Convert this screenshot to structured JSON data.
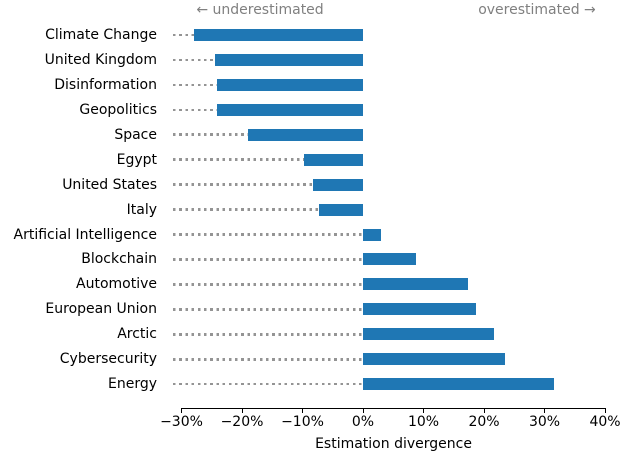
{
  "annotations": {
    "underestimated": "← underestimated",
    "overestimated": "overestimated →"
  },
  "colors": {
    "bar": "#1f77b4",
    "leader_dots": "#949494",
    "annotation_text": "#808080",
    "axis": "#000000",
    "background": "#ffffff"
  },
  "chart_data": {
    "type": "bar",
    "orientation": "horizontal",
    "title": "",
    "xlabel": "Estimation divergence",
    "ylabel": "",
    "unit": "%",
    "grid": false,
    "legend": false,
    "xlim": [
      -30,
      40
    ],
    "xticks": [
      -30,
      -20,
      -10,
      0,
      10,
      20,
      30,
      40
    ],
    "xtick_labels": [
      "−30%",
      "−20%",
      "−10%",
      "0%",
      "10%",
      "20%",
      "30%",
      "40%"
    ],
    "categories": [
      "Climate Change",
      "United Kingdom",
      "Disinformation",
      "Geopolitics",
      "Space",
      "Egypt",
      "United States",
      "Italy",
      "Artificial Intelligence",
      "Blockchain",
      "Automotive",
      "European Union",
      "Arctic",
      "Cybersecurity",
      "Energy"
    ],
    "values": [
      -28,
      -24.4,
      -24.2,
      -24.2,
      -19,
      -9.8,
      -8.3,
      -7.2,
      3,
      8.7,
      17.4,
      18.6,
      21.6,
      23.4,
      31.5
    ],
    "annotation_left": "← underestimated",
    "annotation_right": "overestimated →"
  }
}
